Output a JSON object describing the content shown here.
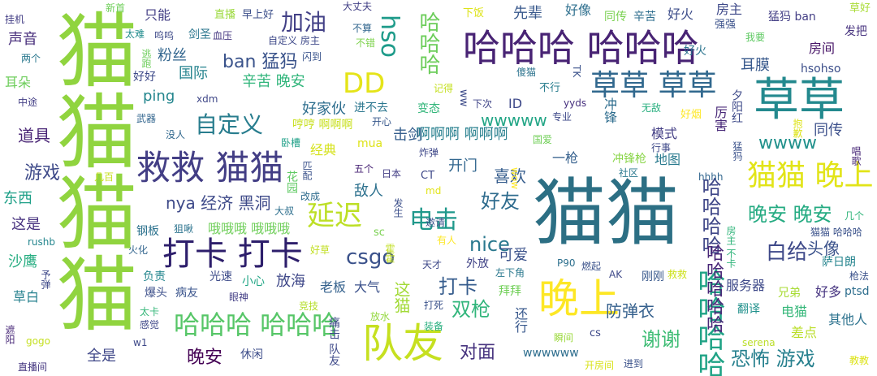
{
  "words": [
    {
      "text": "猫猫",
      "color": "#2c6f84"
    },
    {
      "text": "猫猫猫猫",
      "color": "#90d43f"
    },
    {
      "text": "草草",
      "color": "#23898e"
    },
    {
      "text": "哈哈哈 哈哈哈",
      "color": "#482374"
    },
    {
      "text": "救救 猫猫",
      "color": "#433e85"
    },
    {
      "text": "队友",
      "color": "#c6e020"
    },
    {
      "text": "晚上",
      "color": "#fde725"
    },
    {
      "text": "打卡 打卡",
      "color": "#2d1e6b"
    },
    {
      "text": "猫猫 晚上",
      "color": "#e2e418"
    },
    {
      "text": "哈哈哈哈",
      "color": "#20a386"
    },
    {
      "text": "草草 草草",
      "color": "#31688e"
    },
    {
      "text": "DD",
      "color": "#e5e419"
    },
    {
      "text": "延迟",
      "color": "#bddf26"
    },
    {
      "text": "电击",
      "color": "#1f988b"
    },
    {
      "text": "hso",
      "color": "#1e9b8a"
    },
    {
      "text": "哈哈哈",
      "color": "#6ccd5a"
    },
    {
      "text": "csgo",
      "color": "#3b528b"
    },
    {
      "text": "nice",
      "color": "#2a788e"
    },
    {
      "text": "自定义",
      "color": "#287d8e"
    },
    {
      "text": "晚安 晚安",
      "color": "#25ab82"
    },
    {
      "text": "白给",
      "color": "#3e4989"
    },
    {
      "text": "哈哈哈哈",
      "color": "#3f4788"
    },
    {
      "text": "哈哈哈 哈哈哈",
      "color": "#56c667"
    },
    {
      "text": "加油",
      "color": "#424086"
    },
    {
      "text": "谢谢",
      "color": "#3dbc74"
    },
    {
      "text": "打卡",
      "color": "#365c8d"
    },
    {
      "text": "双枪",
      "color": "#31b57b"
    },
    {
      "text": "游戏",
      "color": "#3e4a89"
    },
    {
      "text": "好友",
      "color": "#2f6c8e"
    },
    {
      "text": "恐怖 游戏",
      "color": "#27808e"
    },
    {
      "text": "wwww",
      "color": "#21918c"
    },
    {
      "text": "ban 猛犸",
      "color": "#3a538b"
    },
    {
      "text": "晚安",
      "color": "#440154"
    },
    {
      "text": "对面",
      "color": "#46327e"
    },
    {
      "text": "防弹衣",
      "color": "#35608d"
    },
    {
      "text": "喜欢",
      "color": "#365d8d"
    },
    {
      "text": "道具",
      "color": "#482475"
    },
    {
      "text": "nya 经济 黑洞",
      "color": "#3e4a89"
    },
    {
      "text": "头像",
      "color": "#3b528b"
    },
    {
      "text": "wwwww",
      "color": "#21a585"
    },
    {
      "text": "啊啊啊 啊啊啊",
      "color": "#277f8e"
    },
    {
      "text": "哈哈哈哈哈",
      "color": "#482677"
    },
    {
      "text": "好家伙",
      "color": "#2e6e8e"
    },
    {
      "text": "这猫",
      "color": "#a2da37"
    },
    {
      "text": "击剑",
      "color": "#355e8d"
    },
    {
      "text": "ping",
      "color": "#24868e"
    },
    {
      "text": "全是",
      "color": "#3f4788"
    },
    {
      "text": "辛苦 晚安",
      "color": "#31b57b"
    },
    {
      "text": "粉丝",
      "color": "#32658e"
    },
    {
      "text": "国际",
      "color": "#25838e"
    },
    {
      "text": "先辈",
      "color": "#38588c"
    },
    {
      "text": "好像",
      "color": "#2e6f8e"
    },
    {
      "text": "开门",
      "color": "#31668e"
    },
    {
      "text": "敌人",
      "color": "#2d718e"
    },
    {
      "text": "同传",
      "color": "#3c508b"
    },
    {
      "text": "声音",
      "color": "#472d7b"
    },
    {
      "text": "可爱",
      "color": "#3b528b"
    },
    {
      "text": "耳膜",
      "color": "#38598c"
    },
    {
      "text": "房间",
      "color": "#481668"
    },
    {
      "text": "这是",
      "color": "#46307e"
    },
    {
      "text": "东西",
      "color": "#1fa088"
    },
    {
      "text": "沙鹰",
      "color": "#26ad81"
    },
    {
      "text": "服务器",
      "color": "#3e4989"
    },
    {
      "text": "电猫",
      "color": "#35b779"
    },
    {
      "text": "其他人",
      "color": "#2c728e"
    },
    {
      "text": "模式",
      "color": "#433e85"
    },
    {
      "text": "大气",
      "color": "#3b518b"
    },
    {
      "text": "放海",
      "color": "#3f4889"
    },
    {
      "text": "老板",
      "color": "#34618d"
    },
    {
      "text": "经典",
      "color": "#d5e21a"
    },
    {
      "text": "地图",
      "color": "#297a8e"
    },
    {
      "text": "差点",
      "color": "#bade28"
    },
    {
      "text": "同传",
      "color": "#7ad151"
    },
    {
      "text": "辛苦",
      "color": "#2e6e8e"
    },
    {
      "text": "好火",
      "color": "#3d4d8a"
    },
    {
      "text": "房主",
      "color": "#3e4989"
    },
    {
      "text": "草白",
      "color": "#26818e"
    },
    {
      "text": "猛犸 ban",
      "color": "#433e85"
    },
    {
      "text": "一枪",
      "color": "#35608d"
    },
    {
      "text": "好多",
      "color": "#463480"
    },
    {
      "text": "ptsd",
      "color": "#2e6e8e"
    },
    {
      "text": "剑圣",
      "color": "#2a768e"
    },
    {
      "text": "外放",
      "color": "#414487"
    },
    {
      "text": "哦哦哦 哦哦哦",
      "color": "#6ece58"
    },
    {
      "text": "钢板",
      "color": "#2c728e"
    },
    {
      "text": "冲锋",
      "color": "#2e6d8e"
    },
    {
      "text": "冲锋枪",
      "color": "#89d548"
    },
    {
      "text": "hsohso",
      "color": "#3c4f8a"
    },
    {
      "text": "萨日朗",
      "color": "#25848e"
    },
    {
      "text": "耳朵",
      "color": "#6ccd5a"
    },
    {
      "text": "只能",
      "color": "#433e85"
    },
    {
      "text": "爆头",
      "color": "#3c4f8a"
    },
    {
      "text": "翻译",
      "color": "#21918c"
    },
    {
      "text": "休闲",
      "color": "#3d4d8a"
    },
    {
      "text": "兄弟",
      "color": "#a8db34"
    },
    {
      "text": "病友",
      "color": "#3a548c"
    },
    {
      "text": "光速",
      "color": "#3e4c8a"
    },
    {
      "text": "小心",
      "color": "#21a685"
    },
    {
      "text": "好火",
      "color": "#2b748e"
    },
    {
      "text": "好好",
      "color": "#3e4a89"
    },
    {
      "text": "进不去",
      "color": "#2a768e"
    },
    {
      "text": "变态",
      "color": "#32b67a"
    },
    {
      "text": "哼哼 啊啊啊",
      "color": "#c8e020"
    },
    {
      "text": "直播",
      "color": "#9bd93c"
    },
    {
      "text": "早上好",
      "color": "#3c4f8a"
    },
    {
      "text": "发把",
      "color": "#46327e"
    },
    {
      "text": "挂机",
      "color": "#433e85"
    },
    {
      "text": "新首",
      "color": "#6ece58"
    },
    {
      "text": "大丈夫",
      "color": "#424086"
    },
    {
      "text": "草好",
      "color": "#a8db34"
    },
    {
      "text": "下饭",
      "color": "#dde318"
    },
    {
      "text": "强强",
      "color": "#3b528b"
    },
    {
      "text": "我要",
      "color": "#5ec962"
    },
    {
      "text": "太难",
      "color": "#228c8d"
    },
    {
      "text": "呜呜",
      "color": "#3e4a89"
    },
    {
      "text": "血压",
      "color": "#453781"
    },
    {
      "text": "不算",
      "color": "#31668e"
    },
    {
      "text": "不错",
      "color": "#7fd34e"
    },
    {
      "text": "闪到",
      "color": "#3a548c"
    },
    {
      "text": "两个",
      "color": "#2a788e"
    },
    {
      "text": "中途",
      "color": "#433e85"
    },
    {
      "text": "傻猫",
      "color": "#2c738e"
    },
    {
      "text": "不行",
      "color": "#287d8e"
    },
    {
      "text": "yyds",
      "color": "#46307e"
    },
    {
      "text": "xdm",
      "color": "#3f4788"
    },
    {
      "text": "ww",
      "color": "#3e4c8a"
    },
    {
      "text": "下次",
      "color": "#404588"
    },
    {
      "text": "记得",
      "color": "#c5e021"
    },
    {
      "text": "专业",
      "color": "#3e4989"
    },
    {
      "text": "无敌",
      "color": "#29af7f"
    },
    {
      "text": "好烟",
      "color": "#fde725"
    },
    {
      "text": "武器",
      "color": "#32658e"
    },
    {
      "text": "开心",
      "color": "#38588c"
    },
    {
      "text": "没人",
      "color": "#31688e"
    },
    {
      "text": "卧槽",
      "color": "#1fa088"
    },
    {
      "text": "mua",
      "color": "#dde318"
    },
    {
      "text": "国爱",
      "color": "#70cf57"
    },
    {
      "text": "行事",
      "color": "#3e4989"
    },
    {
      "text": "炸弹",
      "color": "#3f4889"
    },
    {
      "text": "五个",
      "color": "#482475"
    },
    {
      "text": "日本",
      "color": "#433e85"
    },
    {
      "text": "CT",
      "color": "#3e4989"
    },
    {
      "text": "社区",
      "color": "#2a788e"
    },
    {
      "text": "几百",
      "color": "#c8e020"
    },
    {
      "text": "hhhh",
      "color": "#31668e"
    },
    {
      "text": "几个",
      "color": "#31b57b"
    },
    {
      "text": "md",
      "color": "#e2e418"
    },
    {
      "text": "邀请",
      "color": "#3b528b"
    },
    {
      "text": "改成",
      "color": "#2f6c8e"
    },
    {
      "text": "大叔",
      "color": "#2e6f8e"
    },
    {
      "text": "发生",
      "color": "#3c4f8a"
    },
    {
      "text": "狙啾",
      "color": "#2c738e"
    },
    {
      "text": "火化",
      "color": "#32658e"
    },
    {
      "text": "rushb",
      "color": "#24868e"
    },
    {
      "text": "sc",
      "color": "#7ad151"
    },
    {
      "text": "有人",
      "color": "#fde725"
    },
    {
      "text": "好草",
      "color": "#c2df23"
    },
    {
      "text": "天才",
      "color": "#3e4989"
    },
    {
      "text": "负责",
      "color": "#24868e"
    },
    {
      "text": "P90",
      "color": "#2d708e"
    },
    {
      "text": "燃起",
      "color": "#3b528b"
    },
    {
      "text": "AK",
      "color": "#3e4989"
    },
    {
      "text": "刚刚",
      "color": "#38588c"
    },
    {
      "text": "救救",
      "color": "#cde11d"
    },
    {
      "text": "枪法",
      "color": "#3b528b"
    },
    {
      "text": "左下角",
      "color": "#2a788e"
    },
    {
      "text": "眼神",
      "color": "#433e85"
    },
    {
      "text": "竞技",
      "color": "#b5de2b"
    },
    {
      "text": "放水",
      "color": "#95d840"
    },
    {
      "text": "打死",
      "color": "#3b528b"
    },
    {
      "text": "拜拜",
      "color": "#70cf57"
    },
    {
      "text": "感觉",
      "color": "#3f4889"
    },
    {
      "text": "w1",
      "color": "#3e4989"
    },
    {
      "text": "装备",
      "color": "#29af7f"
    },
    {
      "text": "gogo",
      "color": "#c5e021"
    },
    {
      "text": "瞬间",
      "color": "#9bd93c"
    },
    {
      "text": "cs",
      "color": "#3e4989"
    },
    {
      "text": "serena",
      "color": "#bade28"
    },
    {
      "text": "wwwwww",
      "color": "#2e6e8e"
    },
    {
      "text": "开房间",
      "color": "#d8e219"
    },
    {
      "text": "进到",
      "color": "#3b528b"
    },
    {
      "text": "教教",
      "color": "#dde318"
    },
    {
      "text": "直播间",
      "color": "#453781"
    },
    {
      "text": "太卡",
      "color": "#35b779"
    },
    {
      "text": "猫猫 哈哈哈",
      "color": "#3b528b"
    },
    {
      "text": "ID",
      "color": "#3e4989"
    },
    {
      "text": "厉害",
      "color": "#482878"
    },
    {
      "text": "夕阳红",
      "color": "#3e4a89"
    },
    {
      "text": "抱歉",
      "color": "#dde318"
    },
    {
      "text": "唱歌",
      "color": "#482878"
    },
    {
      "text": "猛犸",
      "color": "#3b528b"
    },
    {
      "text": "房主 不卡",
      "color": "#31b57b"
    },
    {
      "text": "霍霍",
      "color": "#c2df23"
    },
    {
      "text": "花园",
      "color": "#5ec962"
    },
    {
      "text": "匹配",
      "color": "#3b528b"
    },
    {
      "text": "痛击 队友",
      "color": "#3e4989"
    },
    {
      "text": "还行",
      "color": "#38588c"
    },
    {
      "text": "逃跑",
      "color": "#6ccd5a"
    },
    {
      "text": "予弹",
      "color": "#3e4989"
    },
    {
      "text": "遮阳",
      "color": "#482878"
    },
    {
      "text": "wow",
      "color": "#fde725"
    },
    {
      "text": "TK",
      "color": "#3b528b"
    }
  ]
}
